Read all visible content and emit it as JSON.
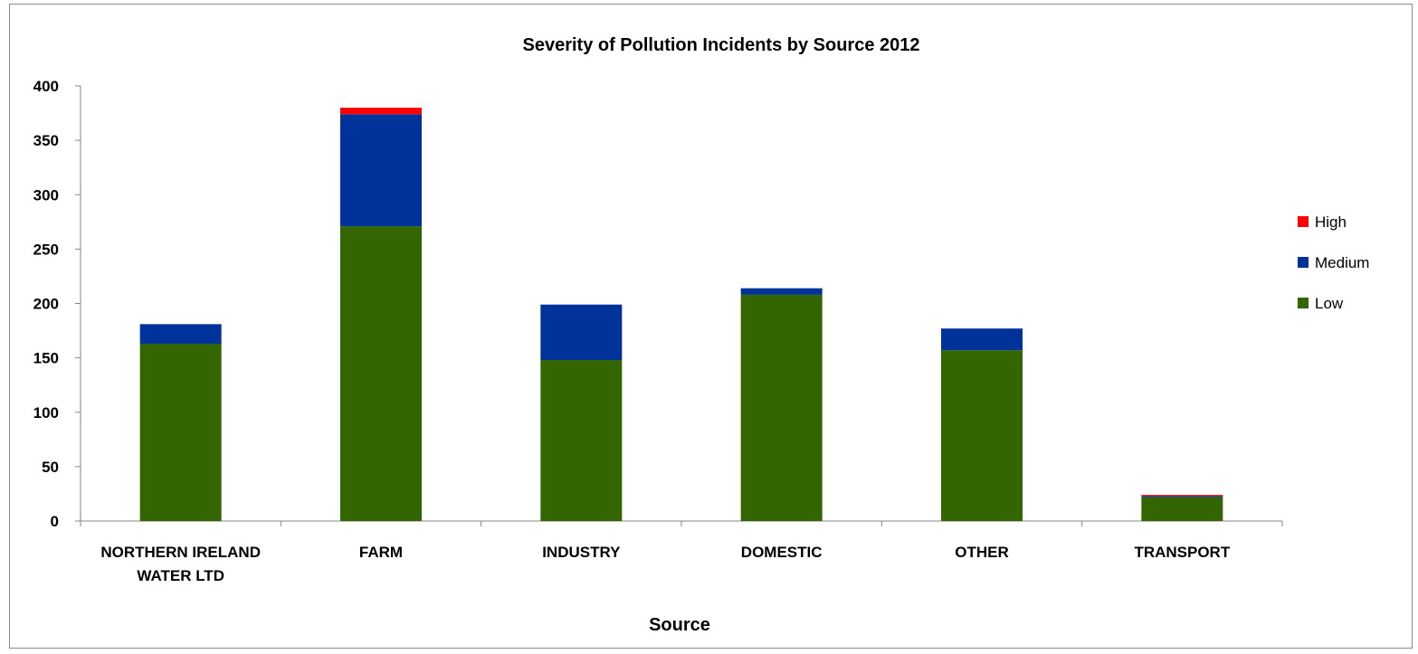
{
  "chart_data": {
    "type": "bar",
    "stacked": true,
    "title": "Severity of Pollution Incidents by Source 2012",
    "xlabel": "Source",
    "ylabel": "",
    "ylim": [
      0,
      400
    ],
    "yticks": [
      0,
      50,
      100,
      150,
      200,
      250,
      300,
      350,
      400
    ],
    "grid": false,
    "legend_position": "right",
    "categories": [
      [
        "NORTHERN IRELAND",
        "WATER LTD"
      ],
      [
        "FARM"
      ],
      [
        "INDUSTRY"
      ],
      [
        "DOMESTIC"
      ],
      [
        "OTHER"
      ],
      [
        "TRANSPORT"
      ]
    ],
    "series": [
      {
        "name": "Low",
        "color": "#336600",
        "values": [
          163,
          271,
          148,
          208,
          157,
          22
        ]
      },
      {
        "name": "Medium",
        "color": "#003399",
        "values": [
          18,
          103,
          51,
          6,
          20,
          1
        ]
      },
      {
        "name": "High",
        "color": "#ff0000",
        "values": [
          0,
          6,
          0,
          0,
          0,
          1
        ]
      }
    ],
    "legend_order": [
      "High",
      "Medium",
      "Low"
    ]
  }
}
